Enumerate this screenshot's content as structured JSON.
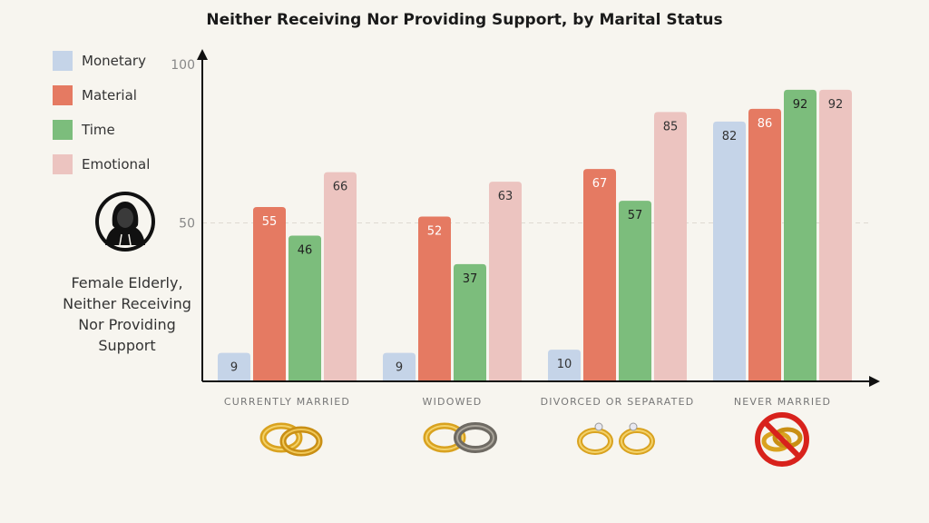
{
  "chart_data": {
    "type": "bar",
    "title": "Neither Receiving Nor Providing Support, by Marital Status",
    "categories": [
      "CURRENTLY MARRIED",
      "WIDOWED",
      "DIVORCED OR SEPARATED",
      "NEVER MARRIED"
    ],
    "series": [
      {
        "name": "Monetary",
        "color": "#c5d4e8",
        "label_color": "#333333",
        "values": [
          9,
          9,
          10,
          82
        ]
      },
      {
        "name": "Material",
        "color": "#e57a62",
        "label_color": "#ffffff",
        "values": [
          55,
          52,
          67,
          86
        ]
      },
      {
        "name": "Time",
        "color": "#7cbd7c",
        "label_color": "#1f1f1f",
        "values": [
          46,
          37,
          57,
          92
        ]
      },
      {
        "name": "Emotional",
        "color": "#ecc4c0",
        "label_color": "#333333",
        "values": [
          66,
          63,
          85,
          92
        ]
      }
    ],
    "yticks": [
      50,
      100
    ],
    "ylim": [
      0,
      100
    ],
    "gridlines": [
      50
    ],
    "legend_position": "top-left"
  },
  "persona": {
    "label": "Female Elderly, Neither Receiving Nor Providing Support",
    "icon": "hooded-person-icon"
  },
  "category_icons": [
    "gold-rings-icon",
    "gold-silver-rings-icon",
    "separated-rings-icon",
    "no-rings-icon"
  ]
}
